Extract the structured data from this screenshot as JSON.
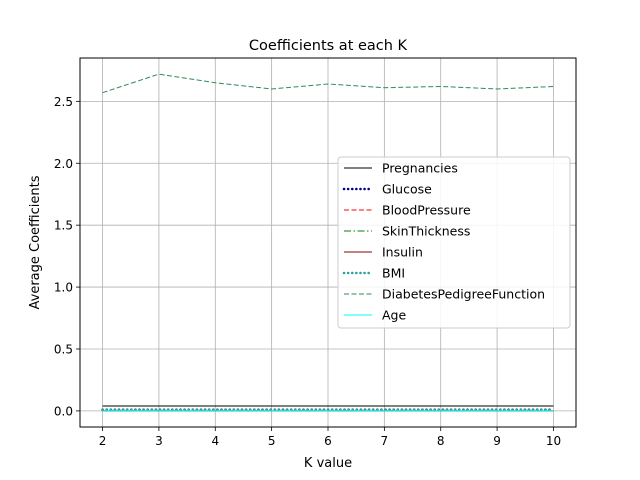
{
  "chart_data": {
    "type": "line",
    "title": "Coefficients at each K",
    "xlabel": "K value",
    "ylabel": "Average Coefficients",
    "x": [
      2,
      3,
      4,
      5,
      6,
      7,
      8,
      9,
      10
    ],
    "xlim": [
      1.6,
      10.4
    ],
    "ylim": [
      -0.13,
      2.85
    ],
    "xticks": [
      "2",
      "3",
      "4",
      "5",
      "6",
      "7",
      "8",
      "9",
      "10"
    ],
    "xtick_values": [
      2,
      3,
      4,
      5,
      6,
      7,
      8,
      9,
      10
    ],
    "yticks": [
      "0.0",
      "0.5",
      "1.0",
      "1.5",
      "2.0",
      "2.5"
    ],
    "ytick_values": [
      0.0,
      0.5,
      1.0,
      1.5,
      2.0,
      2.5
    ],
    "grid": true,
    "legend_position": "center-right",
    "series": [
      {
        "name": "Pregnancies",
        "color": "#000000",
        "style": "solid",
        "width": 1,
        "values": [
          0.04,
          0.04,
          0.04,
          0.04,
          0.04,
          0.04,
          0.04,
          0.04,
          0.04
        ]
      },
      {
        "name": "Glucose",
        "color": "#00008b",
        "style": "dotted",
        "width": 2.5,
        "values": [
          0.01,
          0.01,
          0.01,
          0.01,
          0.01,
          0.01,
          0.01,
          0.01,
          0.01
        ]
      },
      {
        "name": "BloodPressure",
        "color": "#ff0000",
        "style": "dashed",
        "width": 1,
        "values": [
          0.0,
          0.0,
          0.0,
          0.0,
          0.0,
          0.0,
          0.0,
          0.0,
          0.0
        ]
      },
      {
        "name": "SkinThickness",
        "color": "#008000",
        "style": "dashdot",
        "width": 1,
        "values": [
          0.0,
          0.0,
          0.0,
          0.0,
          0.0,
          0.0,
          0.0,
          0.0,
          0.0
        ]
      },
      {
        "name": "Insulin",
        "color": "#8b0000",
        "style": "solid",
        "width": 1,
        "values": [
          0.0,
          0.0,
          0.0,
          0.0,
          0.0,
          0.0,
          0.0,
          0.0,
          0.0
        ]
      },
      {
        "name": "BMI",
        "color": "#2aa198",
        "style": "dotted",
        "width": 2.5,
        "values": [
          0.01,
          0.01,
          0.01,
          0.01,
          0.01,
          0.01,
          0.01,
          0.01,
          0.01
        ]
      },
      {
        "name": "DiabetesPedigreeFunction",
        "color": "#2e8b57",
        "style": "dashed",
        "width": 1,
        "values": [
          2.57,
          2.72,
          2.65,
          2.6,
          2.64,
          2.61,
          2.62,
          2.6,
          2.62
        ]
      },
      {
        "name": "Age",
        "color": "#00ffff",
        "style": "solid",
        "width": 1,
        "values": [
          0.0,
          0.0,
          0.0,
          0.0,
          0.0,
          0.0,
          0.0,
          0.0,
          0.0
        ]
      }
    ]
  }
}
